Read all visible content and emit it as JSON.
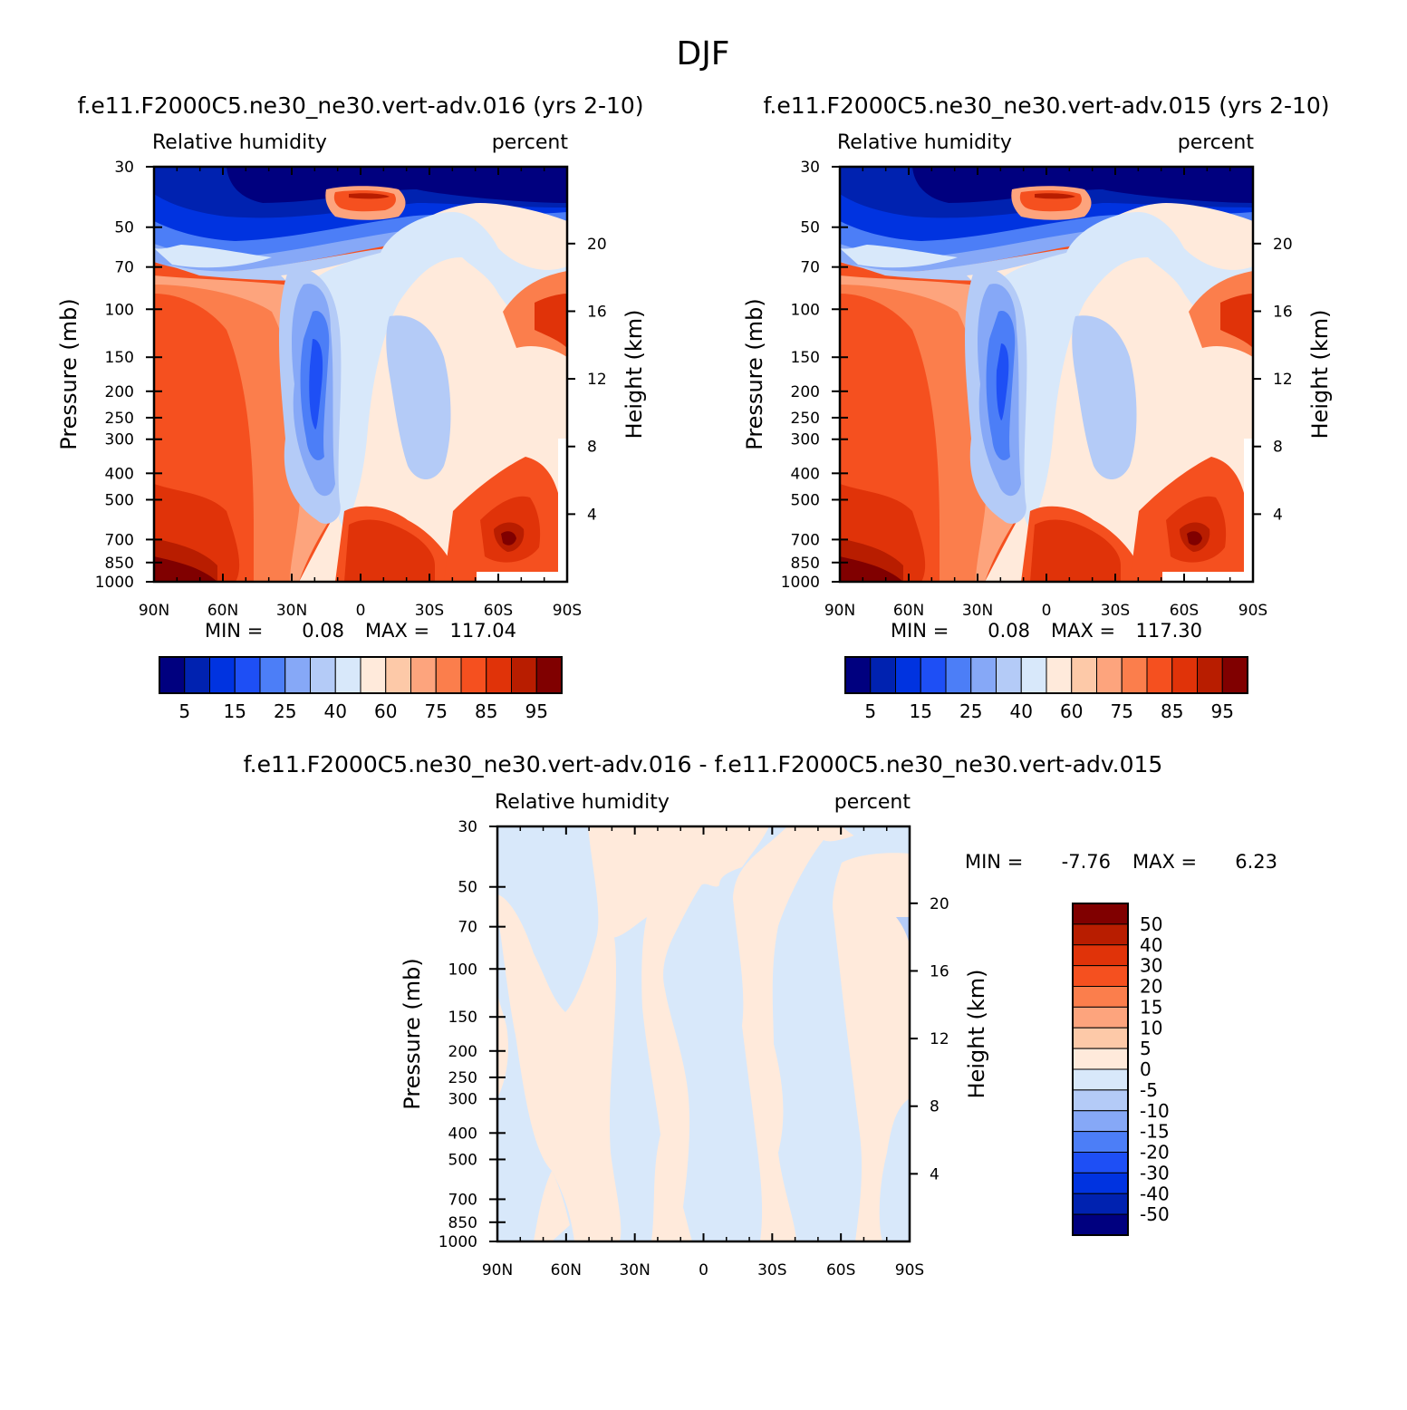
{
  "page_title": "DJF",
  "colors": {
    "rh_scale": [
      "#00007f",
      "#0022b0",
      "#0033e0",
      "#1e4ff5",
      "#4c7ef7",
      "#86a8f7",
      "#b4cbf7",
      "#d8e8fa",
      "#ffeadb",
      "#fdc9a8",
      "#fda47d",
      "#fb7e4c",
      "#f5501f",
      "#e03309",
      "#b81d00",
      "#800000"
    ],
    "diff_scale": [
      "#00007f",
      "#0022b0",
      "#0033e0",
      "#1e4ff5",
      "#4c7ef7",
      "#86a8f7",
      "#b4cbf7",
      "#d8e8fa",
      "#ffeadb",
      "#fdc9a8",
      "#fda47d",
      "#fb7e4c",
      "#f5501f",
      "#e03309",
      "#b81d00",
      "#800000"
    ],
    "diff_panel_blue": "#d8e8fa",
    "diff_panel_orange": "#ffeadb"
  },
  "chart_data": [
    {
      "type": "heatmap",
      "title": "f.e11.F2000C5.ne30_ne30.vert-adv.016 (yrs 2-10)",
      "left_subtitle": "Relative humidity",
      "right_subtitle": "percent",
      "xlabel": "",
      "ylabel": "Pressure (mb)",
      "ylabel_right": "Height (km)",
      "x_ticks": [
        "90N",
        "60N",
        "30N",
        "0",
        "30S",
        "60S",
        "90S"
      ],
      "y_ticks": [
        "30",
        "50",
        "70",
        "100",
        "150",
        "200",
        "250",
        "300",
        "400",
        "500",
        "700",
        "850",
        "1000"
      ],
      "y_right_ticks": [
        "20",
        "16",
        "12",
        "8",
        "4"
      ],
      "min_label": "MIN =",
      "min_value": "0.08",
      "max_label": "MAX =",
      "max_value": "117.04",
      "colorbar_labels": [
        "5",
        "15",
        "25",
        "40",
        "60",
        "75",
        "85",
        "95"
      ]
    },
    {
      "type": "heatmap",
      "title": "f.e11.F2000C5.ne30_ne30.vert-adv.015 (yrs 2-10)",
      "left_subtitle": "Relative humidity",
      "right_subtitle": "percent",
      "xlabel": "",
      "ylabel": "Pressure (mb)",
      "ylabel_right": "Height (km)",
      "x_ticks": [
        "90N",
        "60N",
        "30N",
        "0",
        "30S",
        "60S",
        "90S"
      ],
      "y_ticks": [
        "30",
        "50",
        "70",
        "100",
        "150",
        "200",
        "250",
        "300",
        "400",
        "500",
        "700",
        "850",
        "1000"
      ],
      "y_right_ticks": [
        "20",
        "16",
        "12",
        "8",
        "4"
      ],
      "min_label": "MIN =",
      "min_value": "0.08",
      "max_label": "MAX =",
      "max_value": "117.30",
      "colorbar_labels": [
        "5",
        "15",
        "25",
        "40",
        "60",
        "75",
        "85",
        "95"
      ]
    },
    {
      "type": "heatmap",
      "title": "f.e11.F2000C5.ne30_ne30.vert-adv.016 - f.e11.F2000C5.ne30_ne30.vert-adv.015",
      "left_subtitle": "Relative humidity",
      "right_subtitle": "percent",
      "xlabel": "",
      "ylabel": "Pressure (mb)",
      "ylabel_right": "Height (km)",
      "x_ticks": [
        "90N",
        "60N",
        "30N",
        "0",
        "30S",
        "60S",
        "90S"
      ],
      "y_ticks": [
        "30",
        "50",
        "70",
        "100",
        "150",
        "200",
        "250",
        "300",
        "400",
        "500",
        "700",
        "850",
        "1000"
      ],
      "y_right_ticks": [
        "20",
        "16",
        "12",
        "8",
        "4"
      ],
      "min_label": "MIN =",
      "min_value": "-7.76",
      "max_label": "MAX =",
      "max_value": "6.23",
      "colorbar_labels": [
        "50",
        "40",
        "30",
        "20",
        "15",
        "10",
        "5",
        "0",
        "-5",
        "-10",
        "-15",
        "-20",
        "-30",
        "-40",
        "-50"
      ]
    }
  ]
}
